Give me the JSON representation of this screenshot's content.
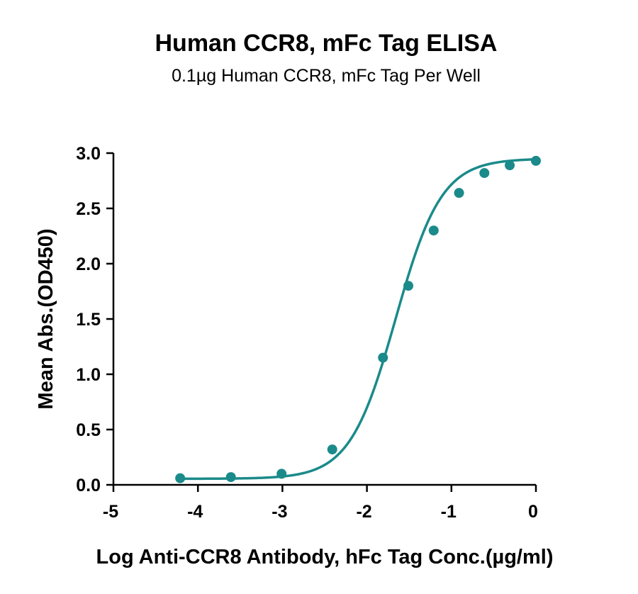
{
  "chart_data": {
    "type": "scatter",
    "title": "Human CCR8, mFc Tag ELISA",
    "subtitle": "0.1µg Human CCR8, mFc Tag Per Well",
    "xlabel": "Log Anti-CCR8 Antibody, hFc Tag Conc.(µg/ml)",
    "ylabel": "Mean Abs.(OD450)",
    "xlim": [
      -5,
      0
    ],
    "ylim": [
      0,
      3.0
    ],
    "xticks": [
      "-5",
      "-4",
      "-3",
      "-2",
      "-1",
      "0"
    ],
    "yticks": [
      "0.0",
      "0.5",
      "1.0",
      "1.5",
      "2.0",
      "2.5",
      "3.0"
    ],
    "grid": false,
    "series": [
      {
        "x": [
          -4.21,
          -3.61,
          -3.01,
          -2.41,
          -1.81,
          -1.51,
          -1.21,
          -0.91,
          -0.61,
          -0.31,
          0.0
        ],
        "values": [
          0.06,
          0.07,
          0.1,
          0.32,
          1.15,
          1.8,
          2.3,
          2.64,
          2.82,
          2.89,
          2.93
        ],
        "fit": "4PL sigmoid curve",
        "color": "#1b8a8a"
      }
    ]
  }
}
